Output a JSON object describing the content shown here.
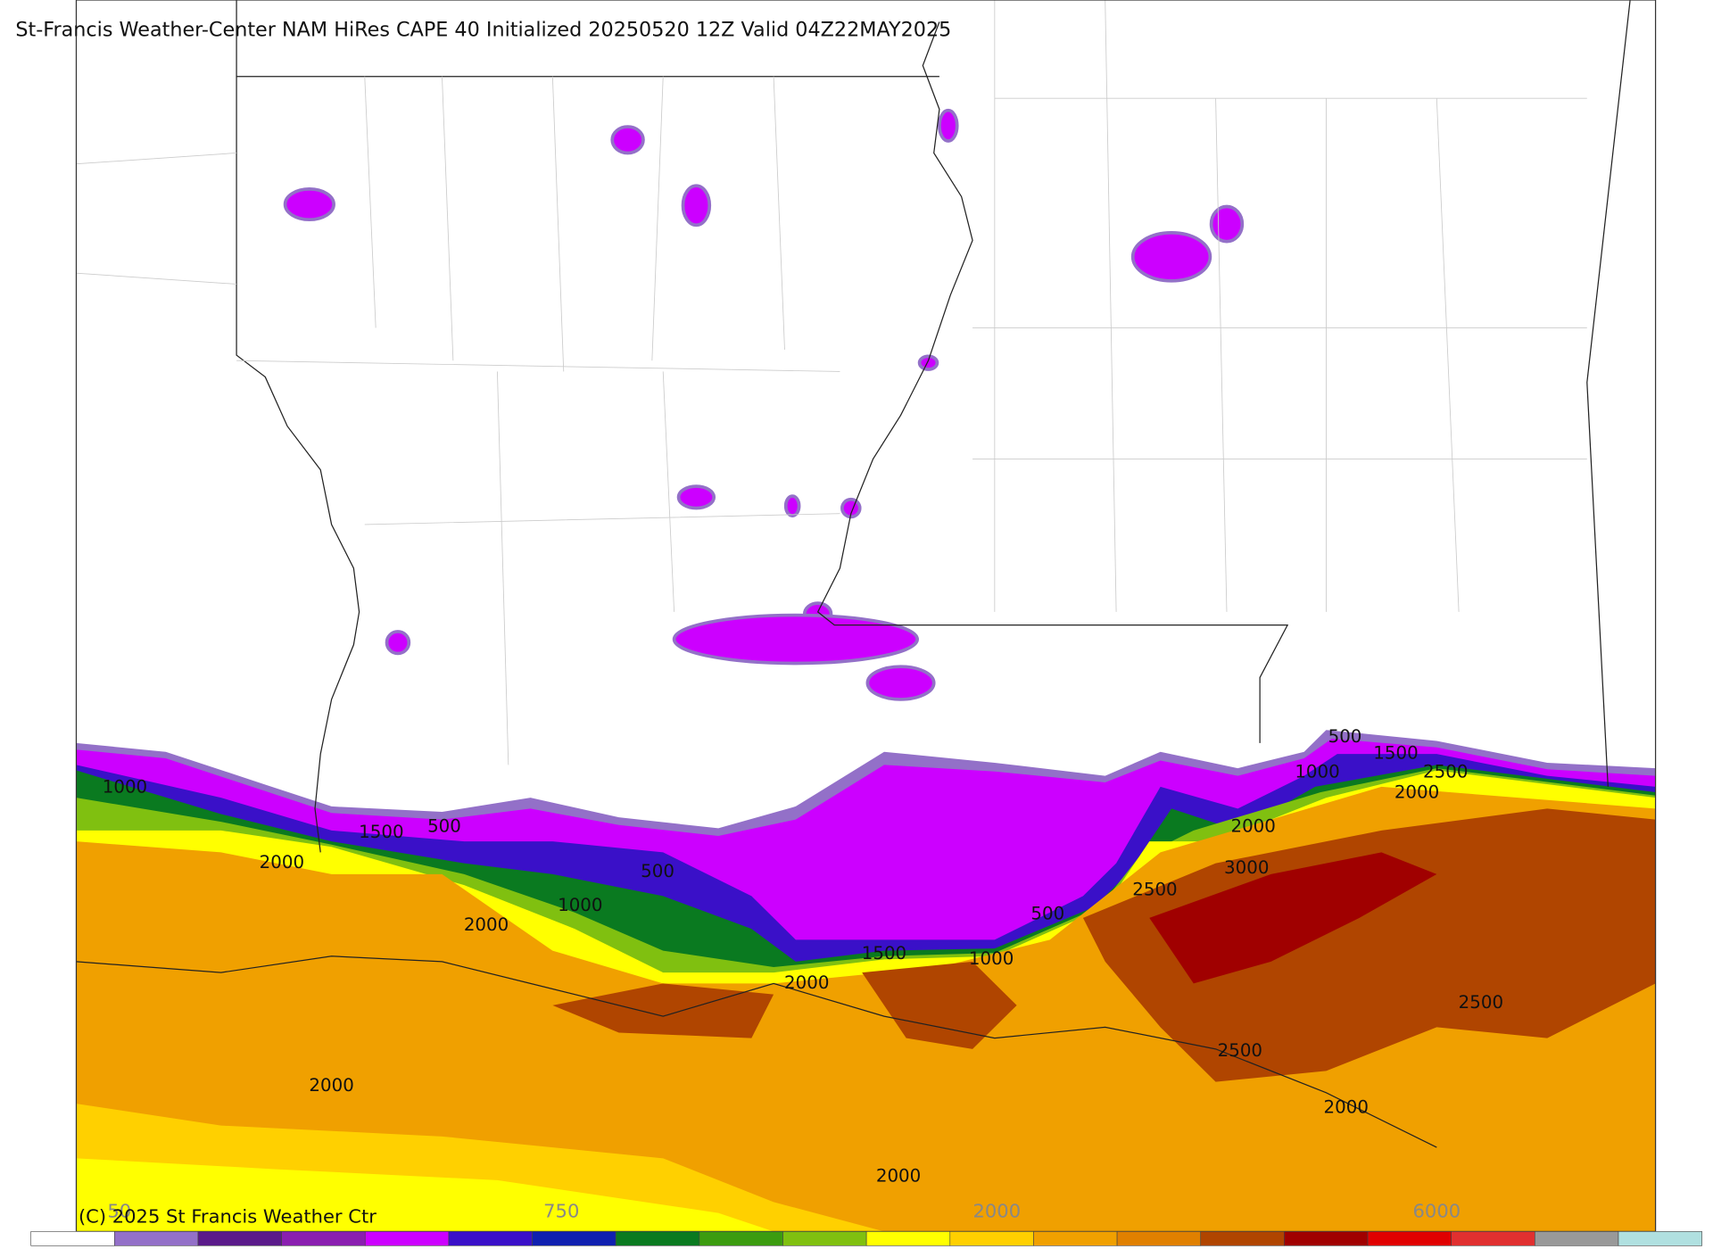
{
  "header": {
    "title": "St-Francis Weather-Center NAM HiRes CAPE  40 Initialized 20250520 12Z Valid 04Z22MAY2025"
  },
  "footer": {
    "copyright": "(C) 2025 St Francis Weather Ctr"
  },
  "contour_labels": [
    "1000",
    "2000",
    "1500",
    "500",
    "2000",
    "1000",
    "500",
    "2000",
    "1500",
    "1000",
    "500",
    "2500",
    "2000",
    "3000",
    "1000",
    "500",
    "1500",
    "2500",
    "2000",
    "2500",
    "2500",
    "2000",
    "2000",
    "2000"
  ],
  "colorbar": {
    "colors": [
      "#ffffff",
      "#9370c8",
      "#5a1a8a",
      "#8a1fb0",
      "#cc00ff",
      "#3a10c8",
      "#1020b0",
      "#0a7a20",
      "#3c9c10",
      "#80c010",
      "#ffff00",
      "#ffd000",
      "#f0a000",
      "#e08000",
      "#b04500",
      "#a00000",
      "#e00000",
      "#e03030",
      "#999999",
      "#b0e0e0"
    ],
    "labels": [
      "50",
      "750",
      "2000",
      "6000"
    ]
  }
}
